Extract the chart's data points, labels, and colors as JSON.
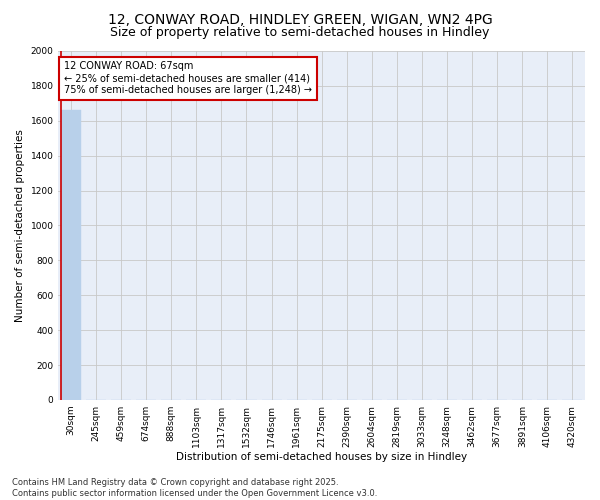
{
  "title": "12, CONWAY ROAD, HINDLEY GREEN, WIGAN, WN2 4PG",
  "subtitle": "Size of property relative to semi-detached houses in Hindley",
  "xlabel": "Distribution of semi-detached houses by size in Hindley",
  "ylabel": "Number of semi-detached properties",
  "bar_labels": [
    "30sqm",
    "245sqm",
    "459sqm",
    "674sqm",
    "888sqm",
    "1103sqm",
    "1317sqm",
    "1532sqm",
    "1746sqm",
    "1961sqm",
    "2175sqm",
    "2390sqm",
    "2604sqm",
    "2819sqm",
    "3033sqm",
    "3248sqm",
    "3462sqm",
    "3677sqm",
    "3891sqm",
    "4106sqm",
    "4320sqm"
  ],
  "bar_values": [
    1662,
    0,
    0,
    0,
    0,
    0,
    0,
    0,
    0,
    0,
    0,
    0,
    0,
    0,
    0,
    0,
    0,
    0,
    0,
    0,
    0
  ],
  "bar_color": "#b8d0ea",
  "ylim": [
    0,
    2000
  ],
  "yticks": [
    0,
    200,
    400,
    600,
    800,
    1000,
    1200,
    1400,
    1600,
    1800,
    2000
  ],
  "grid_color": "#c8c8c8",
  "background_color": "#e8eef8",
  "annotation_line1": "12 CONWAY ROAD: 67sqm",
  "annotation_line2": "← 25% of semi-detached houses are smaller (414)",
  "annotation_line3": "75% of semi-detached houses are larger (1,248) →",
  "annotation_box_color": "#ffffff",
  "annotation_border_color": "#cc0000",
  "property_bar_index": 0,
  "red_line_color": "#cc0000",
  "footer_text": "Contains HM Land Registry data © Crown copyright and database right 2025.\nContains public sector information licensed under the Open Government Licence v3.0.",
  "title_fontsize": 10,
  "subtitle_fontsize": 9,
  "axis_label_fontsize": 7.5,
  "tick_fontsize": 6.5,
  "annotation_fontsize": 7,
  "footer_fontsize": 6
}
